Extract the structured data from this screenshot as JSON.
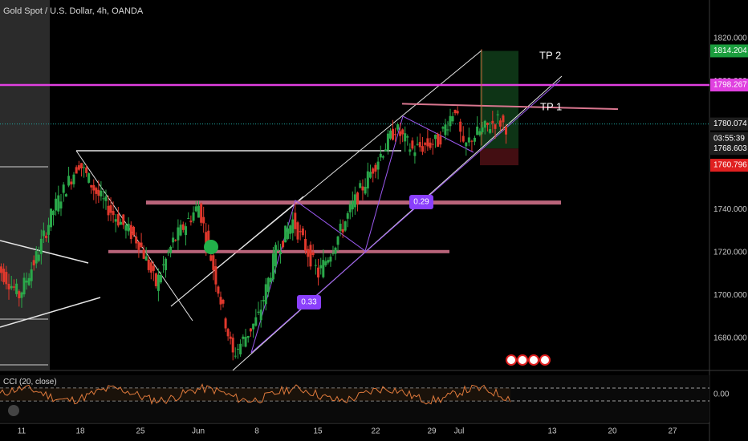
{
  "header": {
    "symbol_title": "Gold Spot / U.S. Dollar, 4h, OANDA"
  },
  "indicator": {
    "label": "CCI (20, close)",
    "value_label": "0.00",
    "upper_level": 100,
    "lower_level": -100
  },
  "price_axis": {
    "ticks": [
      "1820.000",
      "1800.000",
      "1780.000",
      "1760.000",
      "1740.000",
      "1720.000",
      "1700.000",
      "1680.000"
    ],
    "badges": [
      {
        "text": "1814.204",
        "color": "#1b9e3e"
      },
      {
        "text": "1798.267",
        "color": "#e040e0"
      },
      {
        "text": "1780.074",
        "color": "#1e1e1e"
      },
      {
        "text": "03:55:39",
        "color": "#1e1e1e"
      },
      {
        "text": "1768.603",
        "color": "#1e1e1e"
      },
      {
        "text": "1760.796",
        "color": "#e02020"
      }
    ]
  },
  "time_axis": {
    "labels": [
      "11",
      "18",
      "25",
      "Jun",
      "8",
      "15",
      "22",
      "29",
      "Jul",
      "13",
      "20",
      "27"
    ]
  },
  "annotations": {
    "tp1": "TP 1",
    "tp2": "TP 2",
    "badge_029": "0.29",
    "badge_033": "0.33"
  },
  "colors": {
    "background": "#000000",
    "up_candle": "#2aa84a",
    "down_candle": "#e0382c",
    "magenta_line": "#e040e0",
    "pink_zone": "#d9768f",
    "purple_badge": "#8a3ffc",
    "cci_line": "#e07a3c"
  },
  "chart_data": {
    "type": "candlestick",
    "title": "Gold Spot / U.S. Dollar, 4h, OANDA",
    "ylim": [
      1664,
      1832
    ],
    "x_labels": [
      "11",
      "18",
      "25",
      "Jun",
      "8",
      "15",
      "22",
      "29",
      "Jul",
      "13",
      "20",
      "27"
    ],
    "price_path": [
      {
        "t": "May 08",
        "p": 1716
      },
      {
        "t": "May 11",
        "p": 1700
      },
      {
        "t": "May 13",
        "p": 1718
      },
      {
        "t": "May 15",
        "p": 1740
      },
      {
        "t": "May 18",
        "p": 1762
      },
      {
        "t": "May 20",
        "p": 1748
      },
      {
        "t": "May 22",
        "p": 1738
      },
      {
        "t": "May 25",
        "p": 1725
      },
      {
        "t": "May 27",
        "p": 1705
      },
      {
        "t": "May 29",
        "p": 1725
      },
      {
        "t": "Jun 01",
        "p": 1742
      },
      {
        "t": "Jun 03",
        "p": 1708
      },
      {
        "t": "Jun 05",
        "p": 1672
      },
      {
        "t": "Jun 08",
        "p": 1690
      },
      {
        "t": "Jun 10",
        "p": 1720
      },
      {
        "t": "Jun 12",
        "p": 1735
      },
      {
        "t": "Jun 15",
        "p": 1710
      },
      {
        "t": "Jun 17",
        "p": 1725
      },
      {
        "t": "Jun 19",
        "p": 1742
      },
      {
        "t": "Jun 22",
        "p": 1764
      },
      {
        "t": "Jun 24",
        "p": 1778
      },
      {
        "t": "Jun 26",
        "p": 1768
      },
      {
        "t": "Jun 29",
        "p": 1772
      },
      {
        "t": "Jul 01",
        "p": 1788
      },
      {
        "t": "Jul 02",
        "p": 1768
      },
      {
        "t": "Jul 03",
        "p": 1774
      },
      {
        "t": "Jul 06",
        "p": 1782
      },
      {
        "t": "Jul 07",
        "p": 1779
      }
    ],
    "levels": {
      "magenta": 1798.267,
      "current": 1780.074,
      "tp2": 1814.204,
      "stop": 1760.796,
      "previous_close": 1768.603
    },
    "cci_range": [
      -200,
      200
    ]
  }
}
